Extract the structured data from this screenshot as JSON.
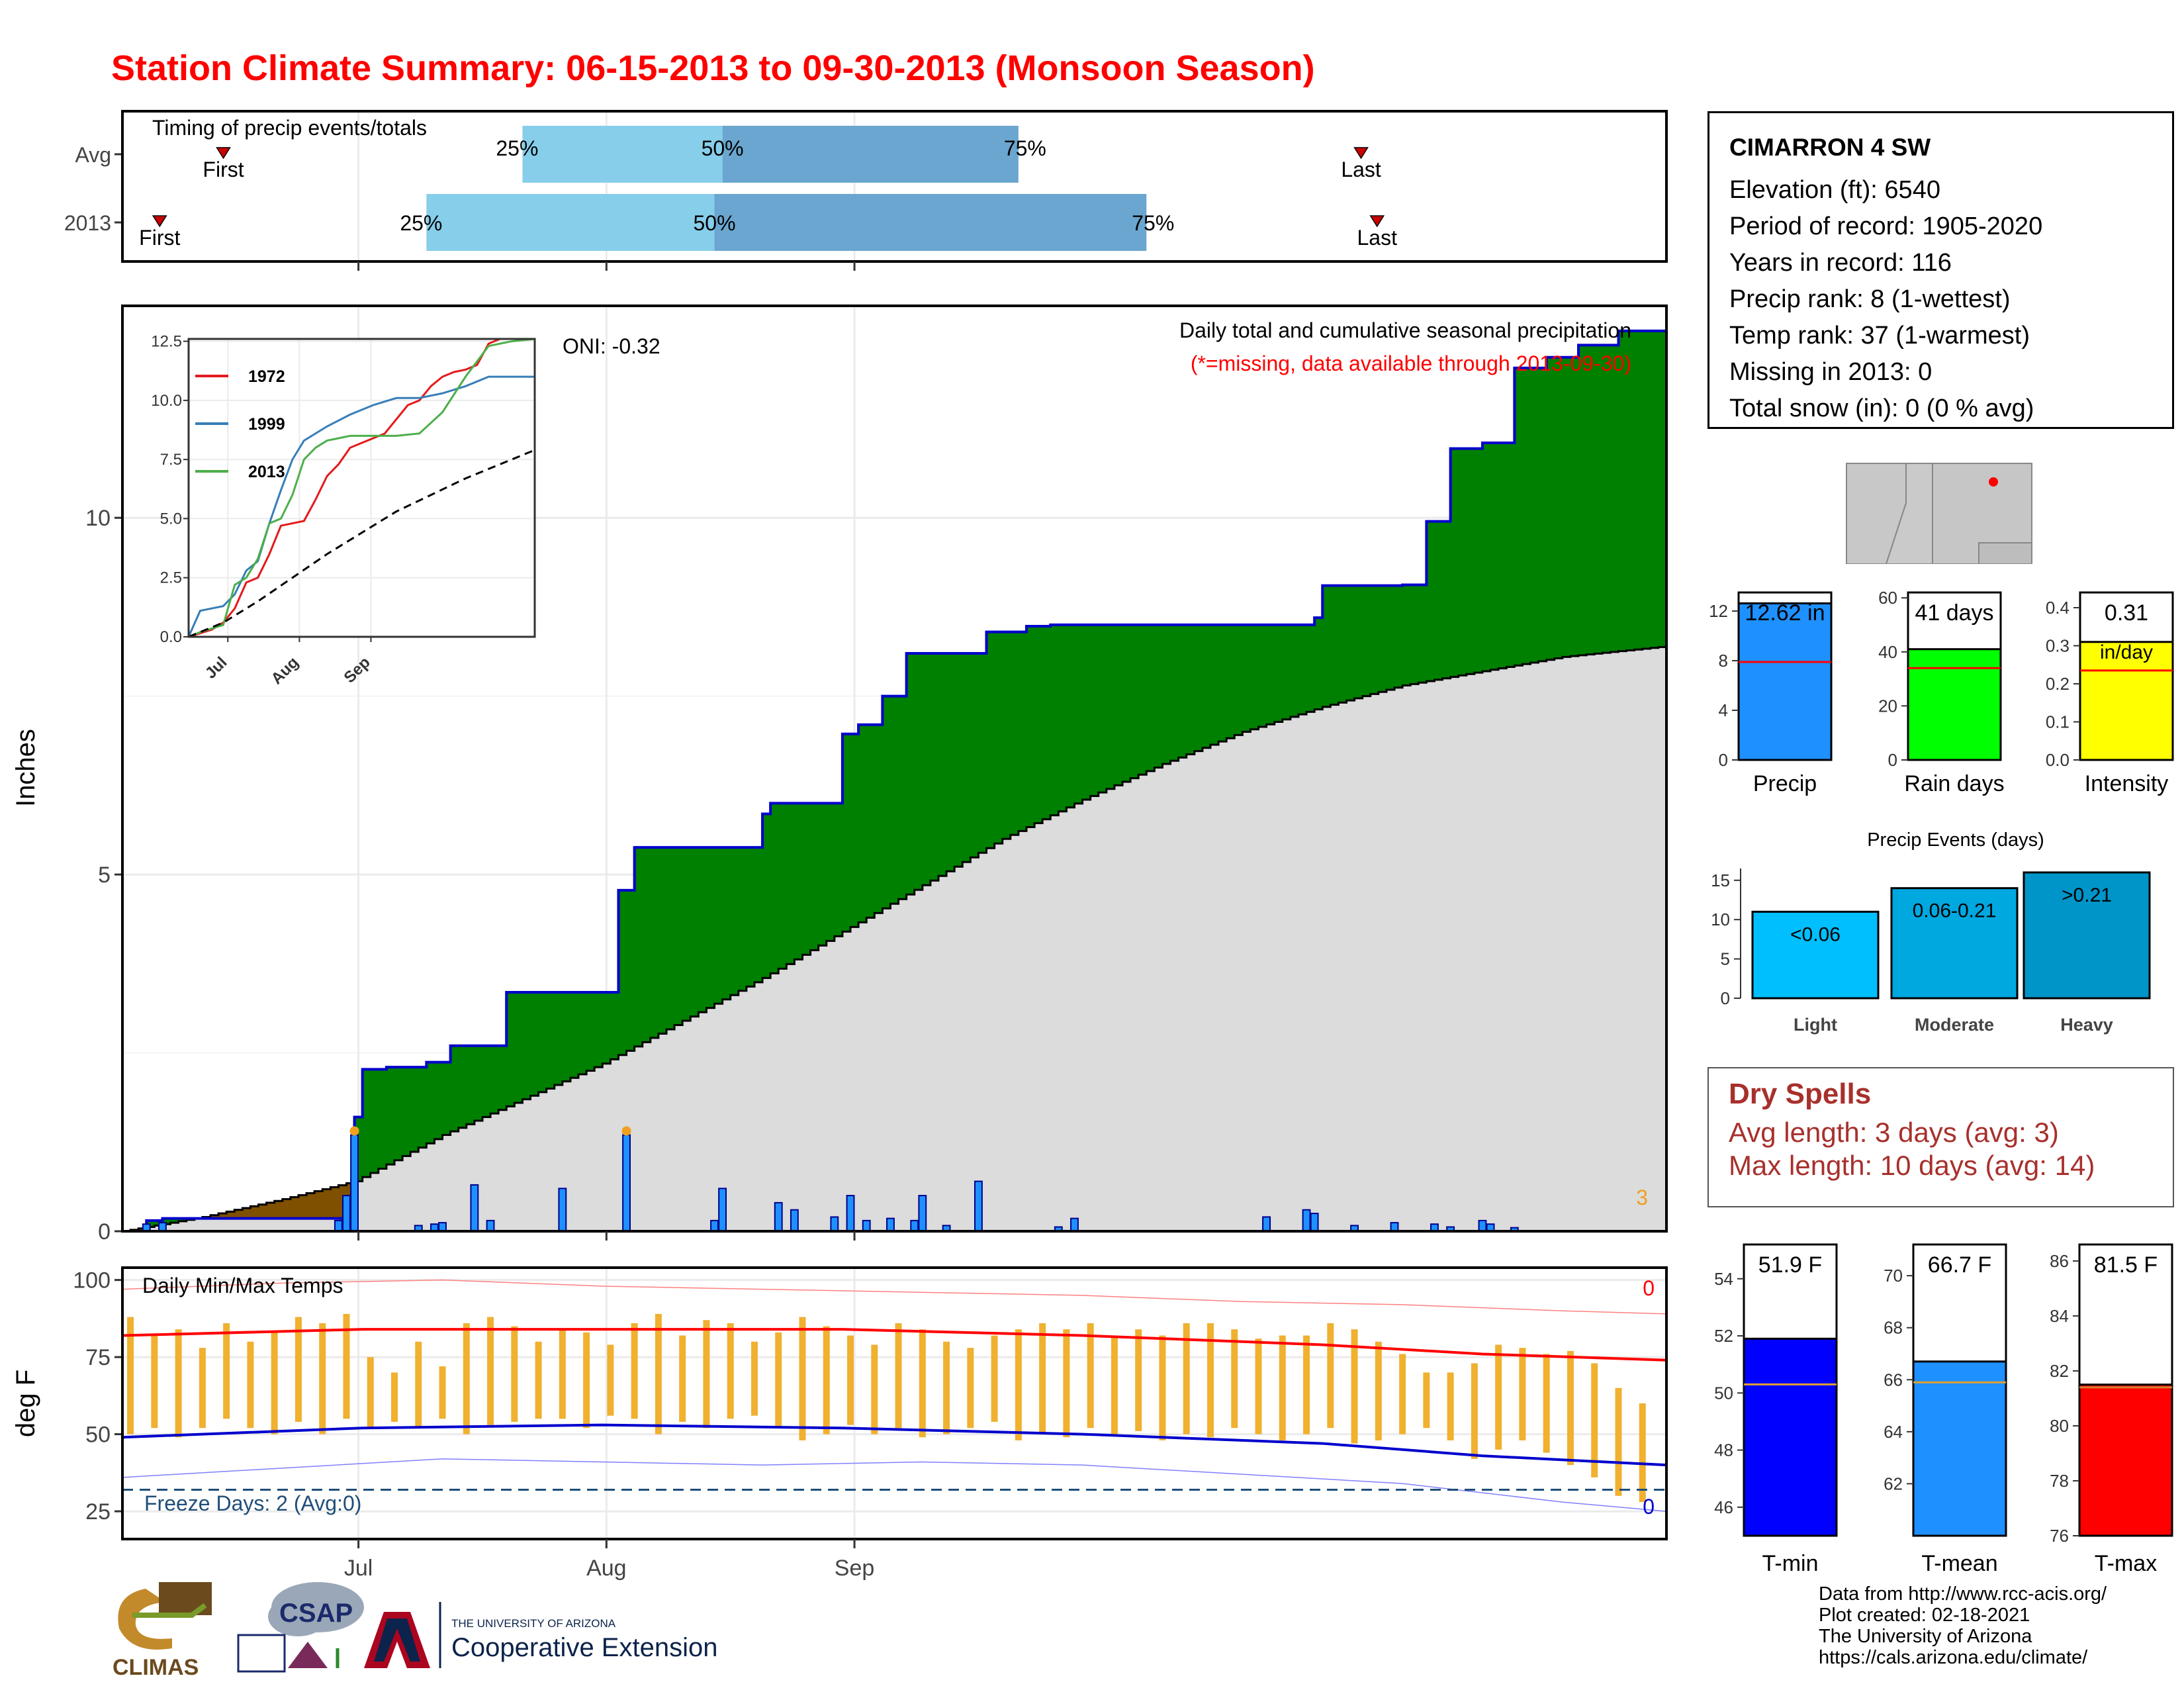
{
  "title": "Station Climate Summary: 06-15-2013 to 09-30-2013 (Monsoon Season)",
  "timing": {
    "label": "Timing of precip events/totals",
    "rows": [
      {
        "name": "Avg",
        "first_day": 6,
        "q25": 50,
        "q50": 75,
        "q75": 112,
        "last_day": 154
      },
      {
        "name": "2013",
        "first_day": 3,
        "q25": 38,
        "q50": 74,
        "q75": 128,
        "last_day": 156
      }
    ],
    "first_label": "First",
    "last_label": "Last",
    "p25": "25%",
    "p50": "50%",
    "p75": "75%",
    "color_light": "#87ceeb",
    "color_dark": "#6aa6cf"
  },
  "station": {
    "name": "CIMARRON 4 SW",
    "lines": [
      "Elevation (ft): 6540",
      "Period of record: 1905-2020",
      "Years in record: 116",
      "Precip rank: 8 (1-wettest)",
      "Temp rank: 37 (1-warmest)",
      "Missing in 2013: 0",
      "Total snow (in): 0 (0 % avg)"
    ]
  },
  "precip_panel": {
    "ylabel": "Inches",
    "title": "Daily total and cumulative seasonal precipitation",
    "subtitle": "(*=missing, data available through 2013-09-30)",
    "oni": "ONI: -0.32",
    "corner_count": "3",
    "yticks": [
      "0",
      "5",
      "10"
    ],
    "colors": {
      "above": "#008000",
      "below": "#dcdcdc",
      "deficit": "#7f5000",
      "bars": "#1e90ff",
      "line": "#0000cd"
    }
  },
  "chart_data": [
    {
      "type": "area",
      "title": "Daily total and cumulative seasonal precipitation",
      "ylabel": "Inches",
      "ylim": [
        0,
        12.6
      ],
      "x_axis": [
        "Jul",
        "Aug",
        "Sep"
      ],
      "series": [
        {
          "name": "2013",
          "x_days": [
            0,
            3,
            5,
            28,
            29,
            30,
            33,
            38,
            41,
            48,
            55,
            62,
            63,
            64,
            65,
            80,
            81,
            86,
            89,
            90,
            92,
            95,
            98,
            105,
            108,
            113,
            116,
            119,
            127,
            128,
            140,
            143,
            149,
            150,
            160,
            163,
            166,
            170,
            174,
            178,
            182,
            187,
            193
          ],
          "values": [
            0,
            0.15,
            0.18,
            0.18,
            1.6,
            2.27,
            2.3,
            2.37,
            2.6,
            3.35,
            3.35,
            4.78,
            4.78,
            5.38,
            5.38,
            5.85,
            6.0,
            6.0,
            6.0,
            6.97,
            7.1,
            7.5,
            8.1,
            8.1,
            8.4,
            8.48,
            8.5,
            8.5,
            8.5,
            8.5,
            8.5,
            8.5,
            8.6,
            9.05,
            9.06,
            9.95,
            10.97,
            11.05,
            12.1,
            12.25,
            12.42,
            12.62,
            12.62
          ]
        },
        {
          "name": "Avg",
          "x_days": [
            0,
            10,
            20,
            29,
            40,
            50,
            60,
            70,
            80,
            90,
            100,
            110,
            120,
            130,
            140,
            150,
            160,
            170,
            180,
            193
          ],
          "values": [
            0,
            0.2,
            0.45,
            0.7,
            1.35,
            1.85,
            2.35,
            2.95,
            3.55,
            4.2,
            4.85,
            5.5,
            6.05,
            6.55,
            7.0,
            7.35,
            7.65,
            7.85,
            8.05,
            8.2
          ]
        }
      ],
      "daily": {
        "x_days": [
          3,
          5,
          27,
          28,
          29,
          37,
          39,
          40,
          44,
          46,
          55,
          63,
          74,
          75,
          82,
          84,
          89,
          91,
          93,
          96,
          99,
          100,
          103,
          107,
          117,
          119,
          143,
          143,
          148,
          149,
          154,
          159,
          164,
          166,
          170,
          171,
          174
        ],
        "values": [
          0.1,
          0.12,
          0.15,
          0.5,
          1.35,
          0.08,
          0.1,
          0.12,
          0.65,
          0.15,
          0.6,
          1.35,
          0.15,
          0.6,
          0.4,
          0.3,
          0.2,
          0.5,
          0.15,
          0.18,
          0.15,
          0.5,
          0.08,
          0.7,
          0.06,
          0.18,
          0.2,
          0.2,
          0.3,
          0.25,
          0.08,
          0.12,
          0.1,
          0.06,
          0.15,
          0.1,
          0.05
        ]
      }
    },
    {
      "type": "line",
      "title": "",
      "x_axis": [
        "Jul",
        "Aug",
        "Sep"
      ],
      "yticks": [
        0.0,
        2.5,
        5.0,
        7.5,
        10.0,
        12.5
      ],
      "ylim": [
        0,
        12.6
      ],
      "series": [
        {
          "name": "1972",
          "color": "#e41a1c",
          "x_days": [
            0,
            10,
            15,
            20,
            25,
            30,
            35,
            40,
            45,
            50,
            55,
            60,
            65,
            70,
            75,
            80,
            85,
            90,
            95,
            100,
            105,
            110,
            115,
            120,
            125,
            130,
            135,
            140,
            150
          ],
          "values": [
            0,
            0.3,
            0.6,
            1.2,
            2.3,
            2.5,
            3.5,
            4.7,
            4.8,
            4.9,
            5.8,
            6.8,
            7.3,
            8.0,
            8.2,
            8.4,
            8.6,
            9.2,
            9.8,
            10.0,
            10.6,
            11.0,
            11.2,
            11.3,
            11.5,
            12.4,
            12.8,
            13.0,
            13.2
          ]
        },
        {
          "name": "1999",
          "color": "#377eb8",
          "x_days": [
            0,
            5,
            15,
            20,
            25,
            30,
            35,
            40,
            45,
            50,
            55,
            60,
            70,
            80,
            90,
            100,
            110,
            120,
            130,
            150
          ],
          "values": [
            0,
            1.1,
            1.3,
            1.8,
            2.8,
            3.2,
            4.8,
            6.2,
            7.5,
            8.3,
            8.6,
            8.9,
            9.4,
            9.8,
            10.1,
            10.1,
            10.3,
            10.6,
            11.0,
            11.0
          ]
        },
        {
          "name": "2013",
          "color": "#4daf4a",
          "x_days": [
            0,
            5,
            15,
            20,
            25,
            30,
            35,
            40,
            45,
            50,
            55,
            60,
            65,
            70,
            80,
            90,
            100,
            110,
            120,
            130,
            140,
            150
          ],
          "values": [
            0,
            0.2,
            0.5,
            2.2,
            2.5,
            3.3,
            4.8,
            5.0,
            6.0,
            7.5,
            8.0,
            8.3,
            8.4,
            8.5,
            8.5,
            8.5,
            8.6,
            9.5,
            11.0,
            12.3,
            12.5,
            12.6
          ]
        },
        {
          "name": "",
          "color": "#000000",
          "dashed": true,
          "x_days": [
            0,
            15,
            30,
            45,
            60,
            75,
            90,
            105,
            120,
            135,
            150
          ],
          "values": [
            0,
            0.6,
            1.5,
            2.5,
            3.5,
            4.4,
            5.3,
            6.0,
            6.7,
            7.3,
            7.9
          ]
        }
      ]
    },
    {
      "type": "bar",
      "title": "",
      "categories": [
        "Precip",
        "Rain days",
        "Intensity"
      ],
      "values": [
        12.62,
        41,
        0.31
      ],
      "labels": [
        "12.62 in",
        "41 days",
        "0.31"
      ],
      "unit_label": "in/day",
      "averages": [
        7.9,
        34,
        0.235
      ],
      "ylims": [
        [
          0,
          13.5
        ],
        [
          0,
          62
        ],
        [
          0,
          0.44
        ]
      ],
      "yticks": [
        [
          0,
          4,
          8,
          12
        ],
        [
          0,
          20,
          40,
          60
        ],
        [
          0.0,
          0.1,
          0.2,
          0.3,
          0.4
        ]
      ],
      "colors": [
        "#1e90ff",
        "#00ff00",
        "#ffff00"
      ]
    },
    {
      "type": "bar",
      "title": "Precip Events (days)",
      "categories": [
        "Light",
        "Moderate",
        "Heavy"
      ],
      "values": [
        11,
        14,
        16
      ],
      "labels": [
        "<0.06",
        "0.06-0.21",
        ">0.21"
      ],
      "ylim": [
        0,
        16.5
      ],
      "yticks": [
        0,
        5,
        10,
        15
      ],
      "colors": [
        "#00bfff",
        "#00a8e0",
        "#0095c8"
      ]
    },
    {
      "type": "line",
      "title": "Daily Min/Max Temps",
      "ylabel": "deg F",
      "x_axis": [
        "Jul",
        "Aug",
        "Sep"
      ],
      "yticks": [
        25,
        50,
        75,
        100
      ],
      "ylim": [
        16,
        104
      ],
      "freeze_line": 32,
      "annotations": {
        "freeze": "Freeze Days: 2 (Avg:0)",
        "max_count": "0",
        "min_count": "0"
      },
      "series": [
        {
          "name": "Avg max",
          "color": "#ff0000",
          "x_days": [
            0,
            30,
            60,
            90,
            120,
            150,
            170,
            193
          ],
          "values": [
            82,
            84,
            84,
            84,
            82,
            79,
            76,
            74
          ]
        },
        {
          "name": "Avg min",
          "color": "#0000cd",
          "x_days": [
            0,
            30,
            60,
            90,
            120,
            150,
            170,
            193
          ],
          "values": [
            49,
            52,
            53,
            52,
            50,
            47,
            43,
            40
          ]
        },
        {
          "name": "Record max",
          "color": "#ff8080",
          "x_days": [
            0,
            20,
            40,
            60,
            80,
            100,
            120,
            140,
            160,
            180,
            193
          ],
          "values": [
            97,
            99,
            100,
            98,
            97,
            96,
            95,
            93,
            92,
            90,
            89
          ]
        },
        {
          "name": "Record min",
          "color": "#8080ff",
          "x_days": [
            0,
            20,
            40,
            60,
            80,
            100,
            120,
            140,
            160,
            180,
            193
          ],
          "values": [
            36,
            39,
            42,
            41,
            40,
            41,
            40,
            37,
            34,
            28,
            25
          ]
        }
      ],
      "daily_range": {
        "x_days": [
          1,
          4,
          7,
          10,
          13,
          16,
          19,
          22,
          25,
          28,
          31,
          34,
          37,
          40,
          43,
          46,
          49,
          52,
          55,
          58,
          61,
          64,
          67,
          70,
          73,
          76,
          79,
          82,
          85,
          88,
          91,
          94,
          97,
          100,
          103,
          106,
          109,
          112,
          115,
          118,
          121,
          124,
          127,
          130,
          133,
          136,
          139,
          142,
          145,
          148,
          151,
          154,
          157,
          160,
          163,
          166,
          169,
          172,
          175,
          178,
          181,
          184,
          187,
          190
        ],
        "tmax": [
          88,
          82,
          84,
          78,
          86,
          80,
          83,
          88,
          86,
          89,
          75,
          70,
          80,
          72,
          86,
          88,
          85,
          80,
          84,
          83,
          79,
          86,
          89,
          82,
          87,
          86,
          80,
          83,
          88,
          85,
          82,
          79,
          86,
          84,
          80,
          78,
          82,
          84,
          86,
          84,
          86,
          82,
          84,
          82,
          86,
          86,
          84,
          81,
          82,
          82,
          86,
          84,
          80,
          76,
          70,
          70,
          73,
          79,
          78,
          76,
          77,
          73,
          65,
          60
        ],
        "tmin": [
          50,
          52,
          49,
          52,
          55,
          52,
          50,
          54,
          50,
          55,
          52,
          54,
          52,
          55,
          50,
          53,
          54,
          55,
          55,
          52,
          56,
          55,
          50,
          54,
          52,
          55,
          56,
          52,
          48,
          50,
          53,
          50,
          52,
          49,
          50,
          52,
          54,
          48,
          50,
          49,
          52,
          50,
          51,
          48,
          50,
          49,
          52,
          50,
          48,
          50,
          52,
          47,
          48,
          50,
          52,
          48,
          42,
          45,
          48,
          44,
          40,
          36,
          30,
          28
        ]
      }
    },
    {
      "type": "bar",
      "title": "",
      "categories": [
        "T-min",
        "T-mean",
        "T-max"
      ],
      "values": [
        51.9,
        66.7,
        81.5
      ],
      "labels": [
        "51.9 F",
        "66.7 F",
        "81.5 F"
      ],
      "averages": [
        50.3,
        65.9,
        81.4
      ],
      "ylims": [
        [
          45,
          55.2
        ],
        [
          60,
          71.2
        ],
        [
          76,
          86.6
        ]
      ],
      "yticks": [
        [
          46,
          48,
          50,
          52,
          54
        ],
        [
          62,
          64,
          66,
          68,
          70
        ],
        [
          76,
          78,
          80,
          82,
          84,
          86
        ]
      ],
      "colors": [
        "#0000ff",
        "#1e90ff",
        "#ff0000"
      ]
    }
  ],
  "dry_spells": {
    "heading": "Dry Spells",
    "avg": "Avg length: 3 days (avg: 3)",
    "max": "Max length: 10 days (avg: 14)"
  },
  "source": {
    "lines": [
      "Data from http://www.rcc-acis.org/",
      "Plot created: 02-18-2021",
      "The University of Arizona",
      "https://cals.arizona.edu/climate/"
    ]
  },
  "logos": {
    "climas": "CLIMAS",
    "csap": "CSAP",
    "ua_top": "THE UNIVERSITY OF ARIZONA",
    "ua_bottom": "Cooperative Extension"
  }
}
